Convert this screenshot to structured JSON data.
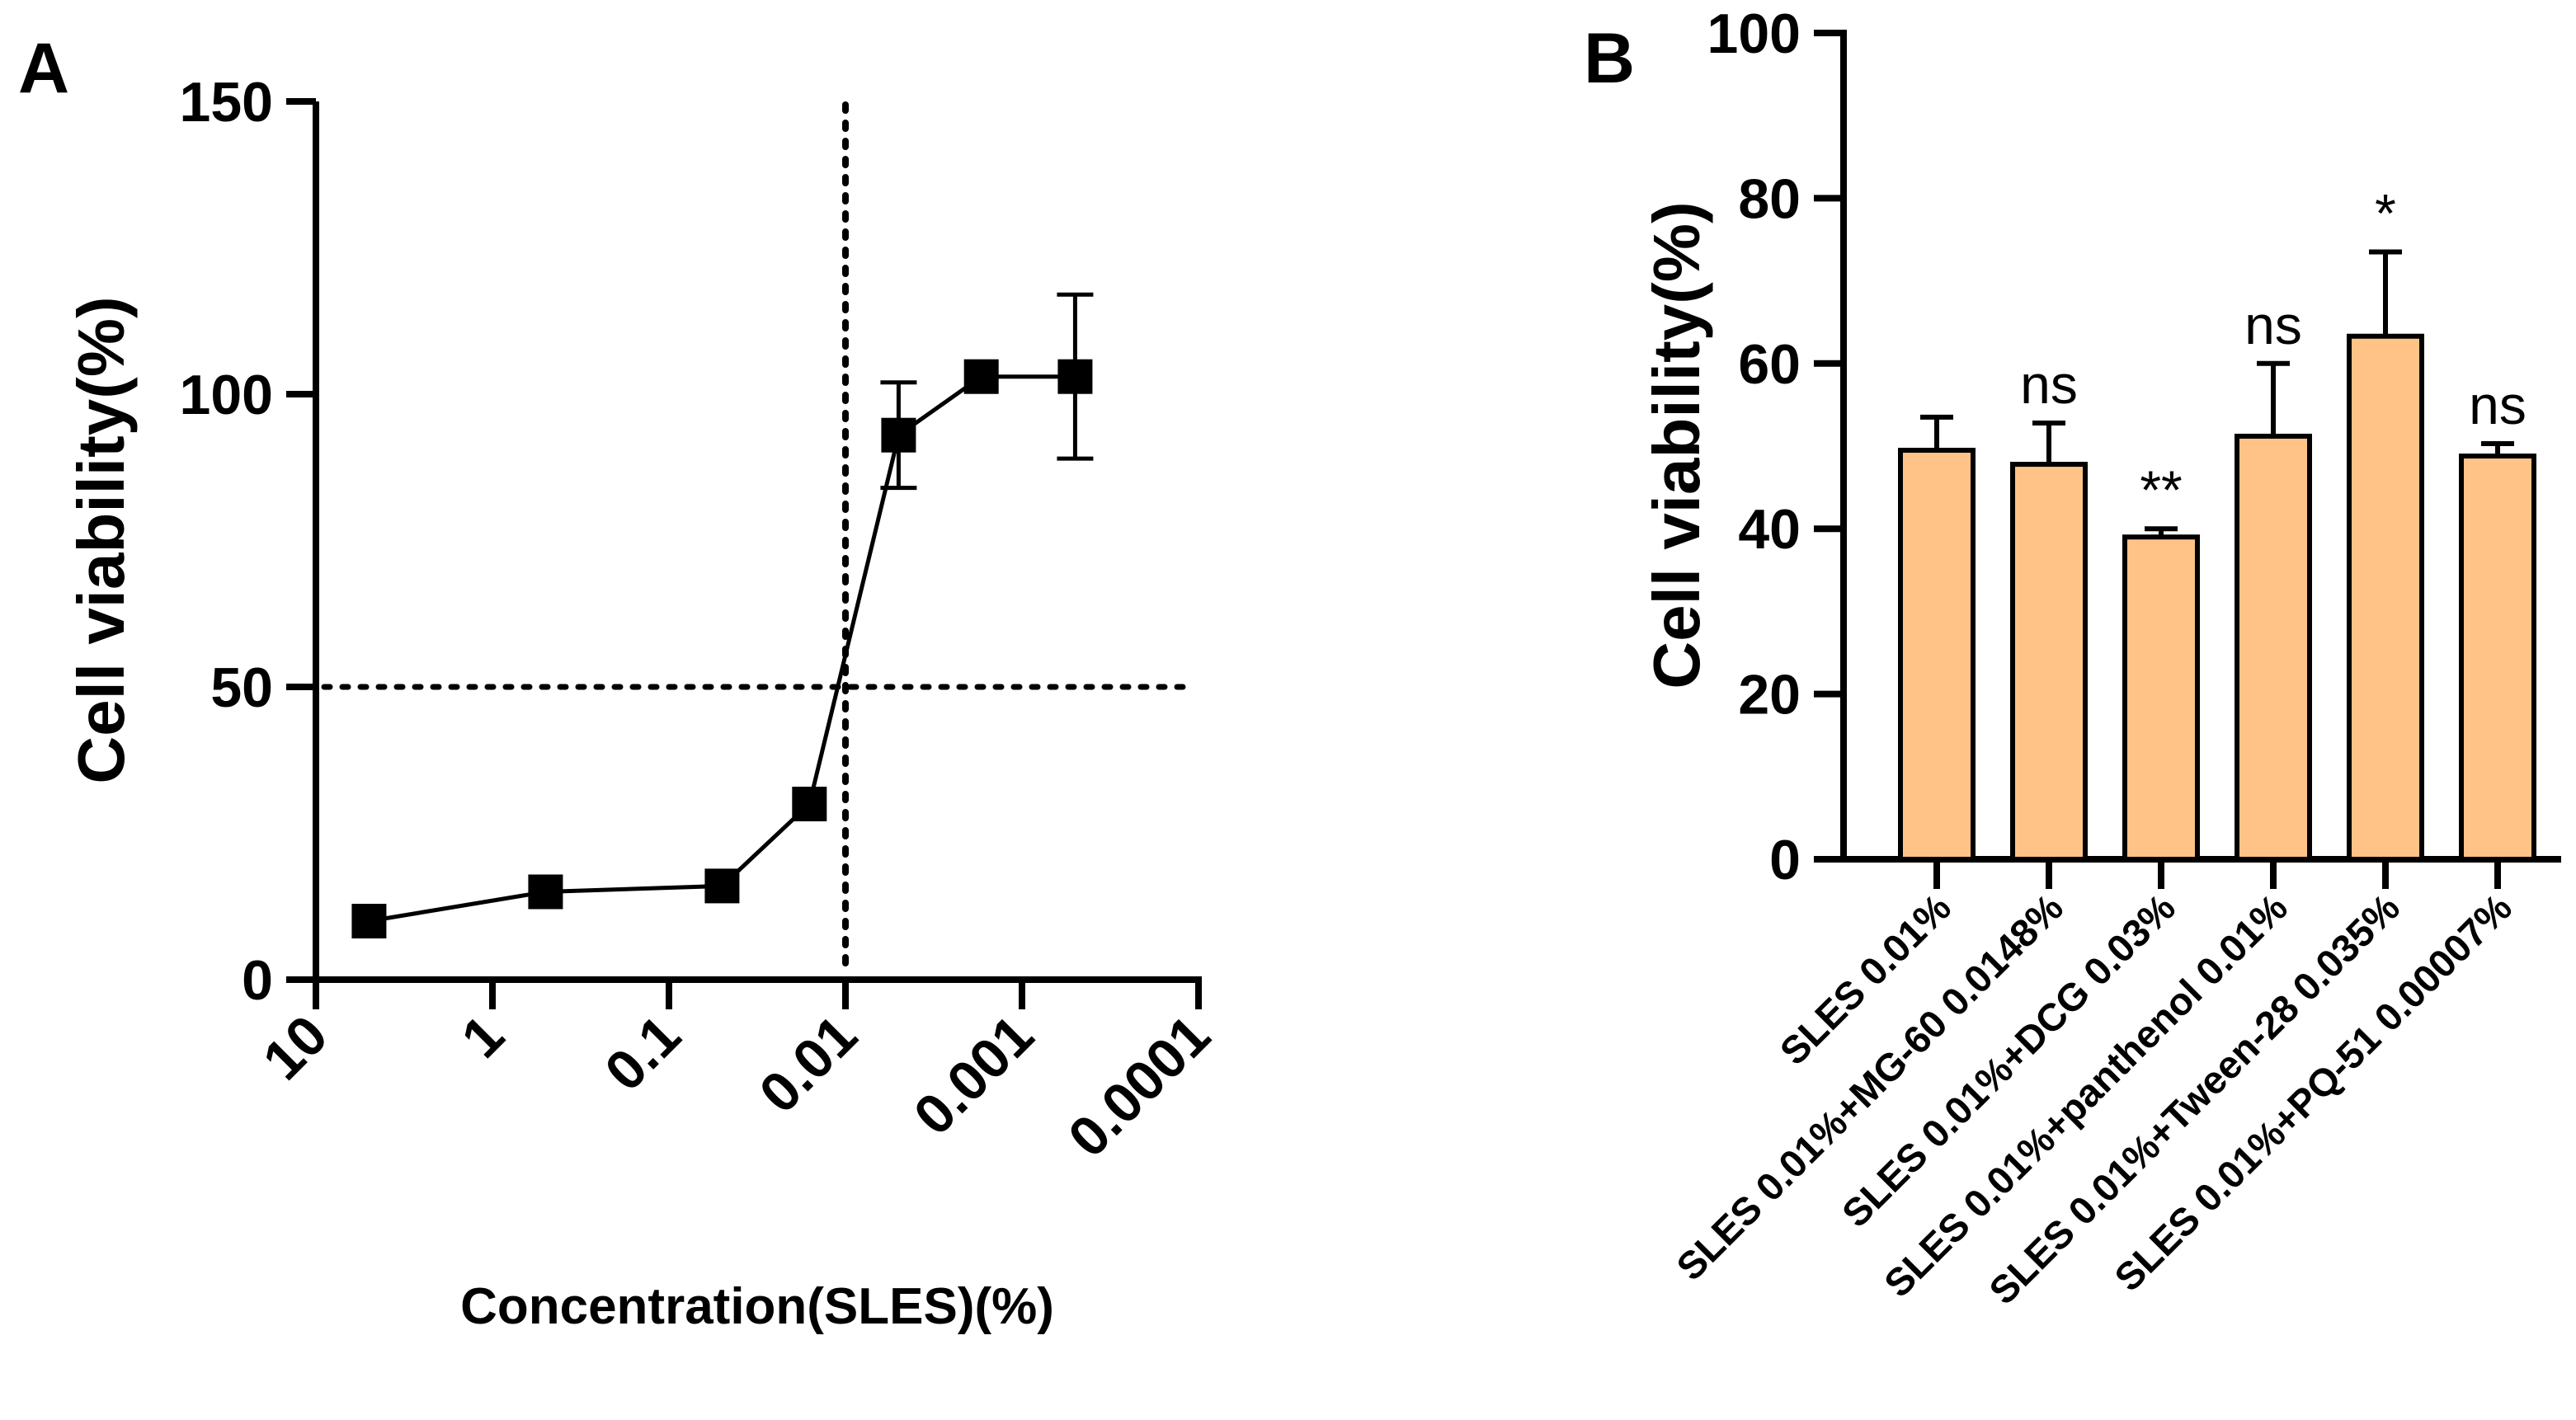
{
  "colors": {
    "ink": "#000000",
    "bar_fill": "#FFC387",
    "background": "#FFFFFF"
  },
  "chart_data": [
    {
      "panel": "A",
      "type": "line",
      "xscale": "log",
      "x_reversed": true,
      "xlabel": "Concentration(SLES)(%)",
      "ylabel": "Cell viability(%)",
      "x_ticks": [
        10,
        1,
        0.1,
        0.01,
        0.001,
        0.0001
      ],
      "x_tick_labels": [
        "10",
        "1",
        "0.1",
        "0.01",
        "0.001",
        "0.0001"
      ],
      "y_ticks": [
        0,
        50,
        100,
        150
      ],
      "y_tick_labels": [
        "0",
        "50",
        "100",
        "150"
      ],
      "ylim": [
        0,
        150
      ],
      "series": [
        {
          "name": "SLES",
          "x": [
            5,
            0.5,
            0.05,
            0.016,
            0.005,
            0.0017,
            0.0005
          ],
          "y": [
            10,
            15,
            16,
            30,
            93,
            103,
            103
          ],
          "err": [
            0,
            0,
            0,
            0,
            9,
            0,
            14
          ]
        }
      ],
      "reference_lines": [
        {
          "axis": "y",
          "value": 50,
          "style": "dotted"
        },
        {
          "axis": "x",
          "value": 0.01,
          "style": "dotted"
        }
      ]
    },
    {
      "panel": "B",
      "type": "bar",
      "ylabel": "Cell viability(%)",
      "ylim": [
        0,
        100
      ],
      "y_ticks": [
        0,
        20,
        40,
        60,
        80,
        100
      ],
      "y_tick_labels": [
        "0",
        "20",
        "40",
        "60",
        "80",
        "100"
      ],
      "categories": [
        "SLES 0.01%",
        "SLES 0.01%+MG-60 0.0148%",
        "SLES 0.01%+DCG 0.03%",
        "SLES 0.01%+panthenol 0.01%",
        "SLES 0.01%+Tween-28 0.035%",
        "SLES 0.01%+PQ-51 0.00007%"
      ],
      "values": [
        49.5,
        47.8,
        39.0,
        51.2,
        63.3,
        48.8
      ],
      "err": [
        4.0,
        5.0,
        1.0,
        8.8,
        10.2,
        1.5
      ],
      "annotations": [
        "",
        "ns",
        "**",
        "ns",
        "*",
        "ns"
      ]
    }
  ]
}
